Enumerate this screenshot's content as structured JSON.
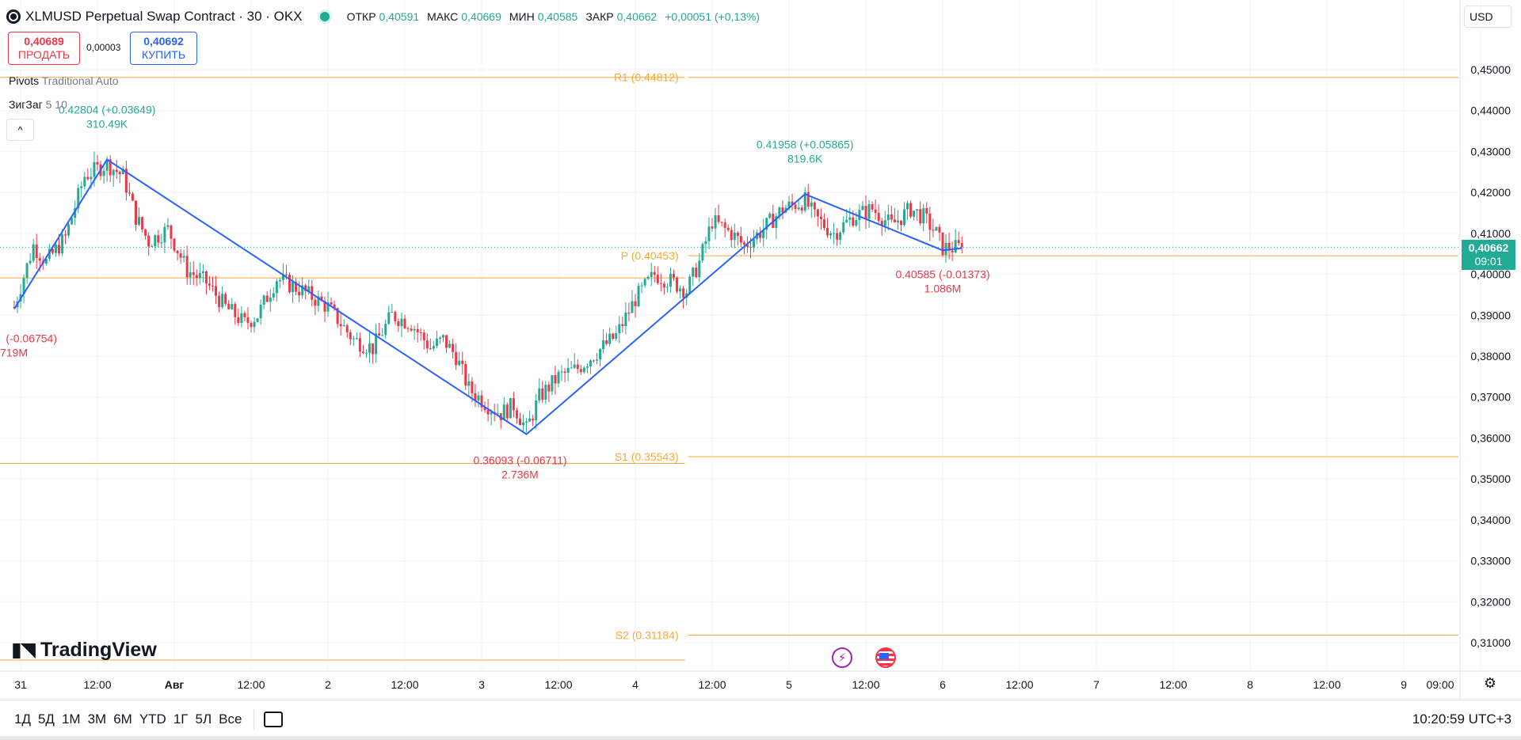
{
  "header": {
    "title": "XLMUSD Perpetual Swap Contract · 30 · OKX",
    "open_label": "ОТКР",
    "open": "0,40591",
    "high_label": "МАКС",
    "high": "0,40669",
    "low_label": "МИН",
    "low": "0,40585",
    "close_label": "ЗАКР",
    "close": "0,40662",
    "change": "+0,00051 (+0,13%)"
  },
  "trade": {
    "sell_price": "0,40689",
    "sell_label": "ПРОДАТЬ",
    "spread": "0,00003",
    "buy_price": "0,40692",
    "buy_label": "КУПИТЬ"
  },
  "indicators": {
    "pivots_name": "Pivots",
    "pivots_params": "Traditional Auto",
    "zigzag_name": "ЗигЗаг",
    "zigzag_params": "5 10",
    "collapse_icon": "^"
  },
  "currency_button": "USD",
  "price_tag": {
    "price": "0,40662",
    "countdown": "09:01"
  },
  "brand": "TradingView",
  "timeframes": [
    "1Д",
    "5Д",
    "1М",
    "3М",
    "6М",
    "YTD",
    "1Г",
    "5Л",
    "Все"
  ],
  "clock": "10:20:59 UTC+3",
  "colors": {
    "up": "#22ab94",
    "down": "#f23645",
    "zigzag": "#2962ff",
    "pivot": "#f7a93a"
  },
  "chart_data": {
    "type": "candlestick",
    "title": "XLMUSD Perpetual Swap Contract · 30 · OKX",
    "y_axis": {
      "range": [
        0.306,
        0.456
      ],
      "tick_labels": [
        "0,45000",
        "0,44000",
        "0,43000",
        "0,42000",
        "0,41000",
        "0,40000",
        "0,39000",
        "0,38000",
        "0,37000",
        "0,36000",
        "0,35000",
        "0,34000",
        "0,33000",
        "0,32000",
        "0,31000"
      ],
      "tick_values": [
        0.45,
        0.44,
        0.43,
        0.42,
        0.41,
        0.4,
        0.39,
        0.38,
        0.37,
        0.36,
        0.35,
        0.34,
        0.33,
        0.32,
        0.31
      ]
    },
    "x_axis": {
      "tick_labels": [
        "31",
        "12:00",
        "Авг",
        "12:00",
        "2",
        "12:00",
        "3",
        "12:00",
        "4",
        "12:00",
        "5",
        "12:00",
        "6",
        "12:00",
        "7",
        "12:00",
        "8",
        "12:00",
        "9",
        "09:00"
      ],
      "tick_hours": [
        0,
        12,
        24,
        36,
        48,
        60,
        72,
        84,
        96,
        108,
        120,
        132,
        144,
        156,
        168,
        180,
        192,
        204,
        216,
        228
      ]
    },
    "pivot_levels": [
      {
        "label": "R1 (0.44812)",
        "value": 0.44812
      },
      {
        "label": "P (0.40453)",
        "value": 0.40453
      },
      {
        "label": "S1 (0.35543)",
        "value": 0.35543
      },
      {
        "label": "S2 (0.31184)",
        "value": 0.31184
      }
    ],
    "prev_period_levels": [
      0.44812,
      0.39911,
      0.35379,
      0.30574
    ],
    "zigzag": [
      {
        "hour": -1,
        "price": 0.3915
      },
      {
        "hour": 13.5,
        "price": 0.42804
      },
      {
        "hour": 79,
        "price": 0.36093
      },
      {
        "hour": 122.5,
        "price": 0.41958
      },
      {
        "hour": 144,
        "price": 0.40585
      },
      {
        "hour": 147,
        "price": 0.4064
      }
    ],
    "zigzag_labels": [
      {
        "text1": "0.42804 (+0.03649)",
        "text2": "310.49K",
        "kind": "up"
      },
      {
        "text1": "0.36093 (-0.06711)",
        "text2": "2.736M",
        "kind": "down"
      },
      {
        "text1": "0.41958 (+0.05865)",
        "text2": "819.6K",
        "kind": "up"
      },
      {
        "text1": "0.40585 (-0.01373)",
        "text2": "1.086M",
        "kind": "down"
      },
      {
        "text1": "(-0.06754)",
        "text2": "719M",
        "kind": "down"
      }
    ],
    "last_price": 0.40662,
    "anchors": [
      [
        -1,
        0.392
      ],
      [
        2,
        0.407
      ],
      [
        4,
        0.403
      ],
      [
        7,
        0.409
      ],
      [
        10,
        0.424
      ],
      [
        13.5,
        0.427
      ],
      [
        16,
        0.424
      ],
      [
        18,
        0.414
      ],
      [
        20,
        0.408
      ],
      [
        23,
        0.411
      ],
      [
        26,
        0.401
      ],
      [
        29,
        0.398
      ],
      [
        32,
        0.392
      ],
      [
        35,
        0.388
      ],
      [
        37,
        0.39
      ],
      [
        40,
        0.399
      ],
      [
        44,
        0.396
      ],
      [
        48,
        0.392
      ],
      [
        52,
        0.384
      ],
      [
        55,
        0.382
      ],
      [
        58,
        0.39
      ],
      [
        61,
        0.388
      ],
      [
        64,
        0.382
      ],
      [
        66,
        0.384
      ],
      [
        68,
        0.38
      ],
      [
        70,
        0.372
      ],
      [
        73,
        0.368
      ],
      [
        75,
        0.366
      ],
      [
        77,
        0.368
      ],
      [
        79,
        0.362
      ],
      [
        81,
        0.37
      ],
      [
        84,
        0.375
      ],
      [
        87,
        0.377
      ],
      [
        90,
        0.381
      ],
      [
        93,
        0.385
      ],
      [
        96,
        0.394
      ],
      [
        99,
        0.4
      ],
      [
        102,
        0.398
      ],
      [
        104,
        0.396
      ],
      [
        106,
        0.403
      ],
      [
        108,
        0.413
      ],
      [
        111,
        0.41
      ],
      [
        113,
        0.407
      ],
      [
        116,
        0.411
      ],
      [
        119,
        0.416
      ],
      [
        122.5,
        0.418
      ],
      [
        124,
        0.414
      ],
      [
        127,
        0.41
      ],
      [
        130,
        0.414
      ],
      [
        133,
        0.416
      ],
      [
        136,
        0.412
      ],
      [
        139,
        0.416
      ],
      [
        141,
        0.414
      ],
      [
        143,
        0.41
      ],
      [
        144,
        0.4065
      ],
      [
        145.5,
        0.4064
      ],
      [
        147,
        0.40662
      ]
    ]
  }
}
